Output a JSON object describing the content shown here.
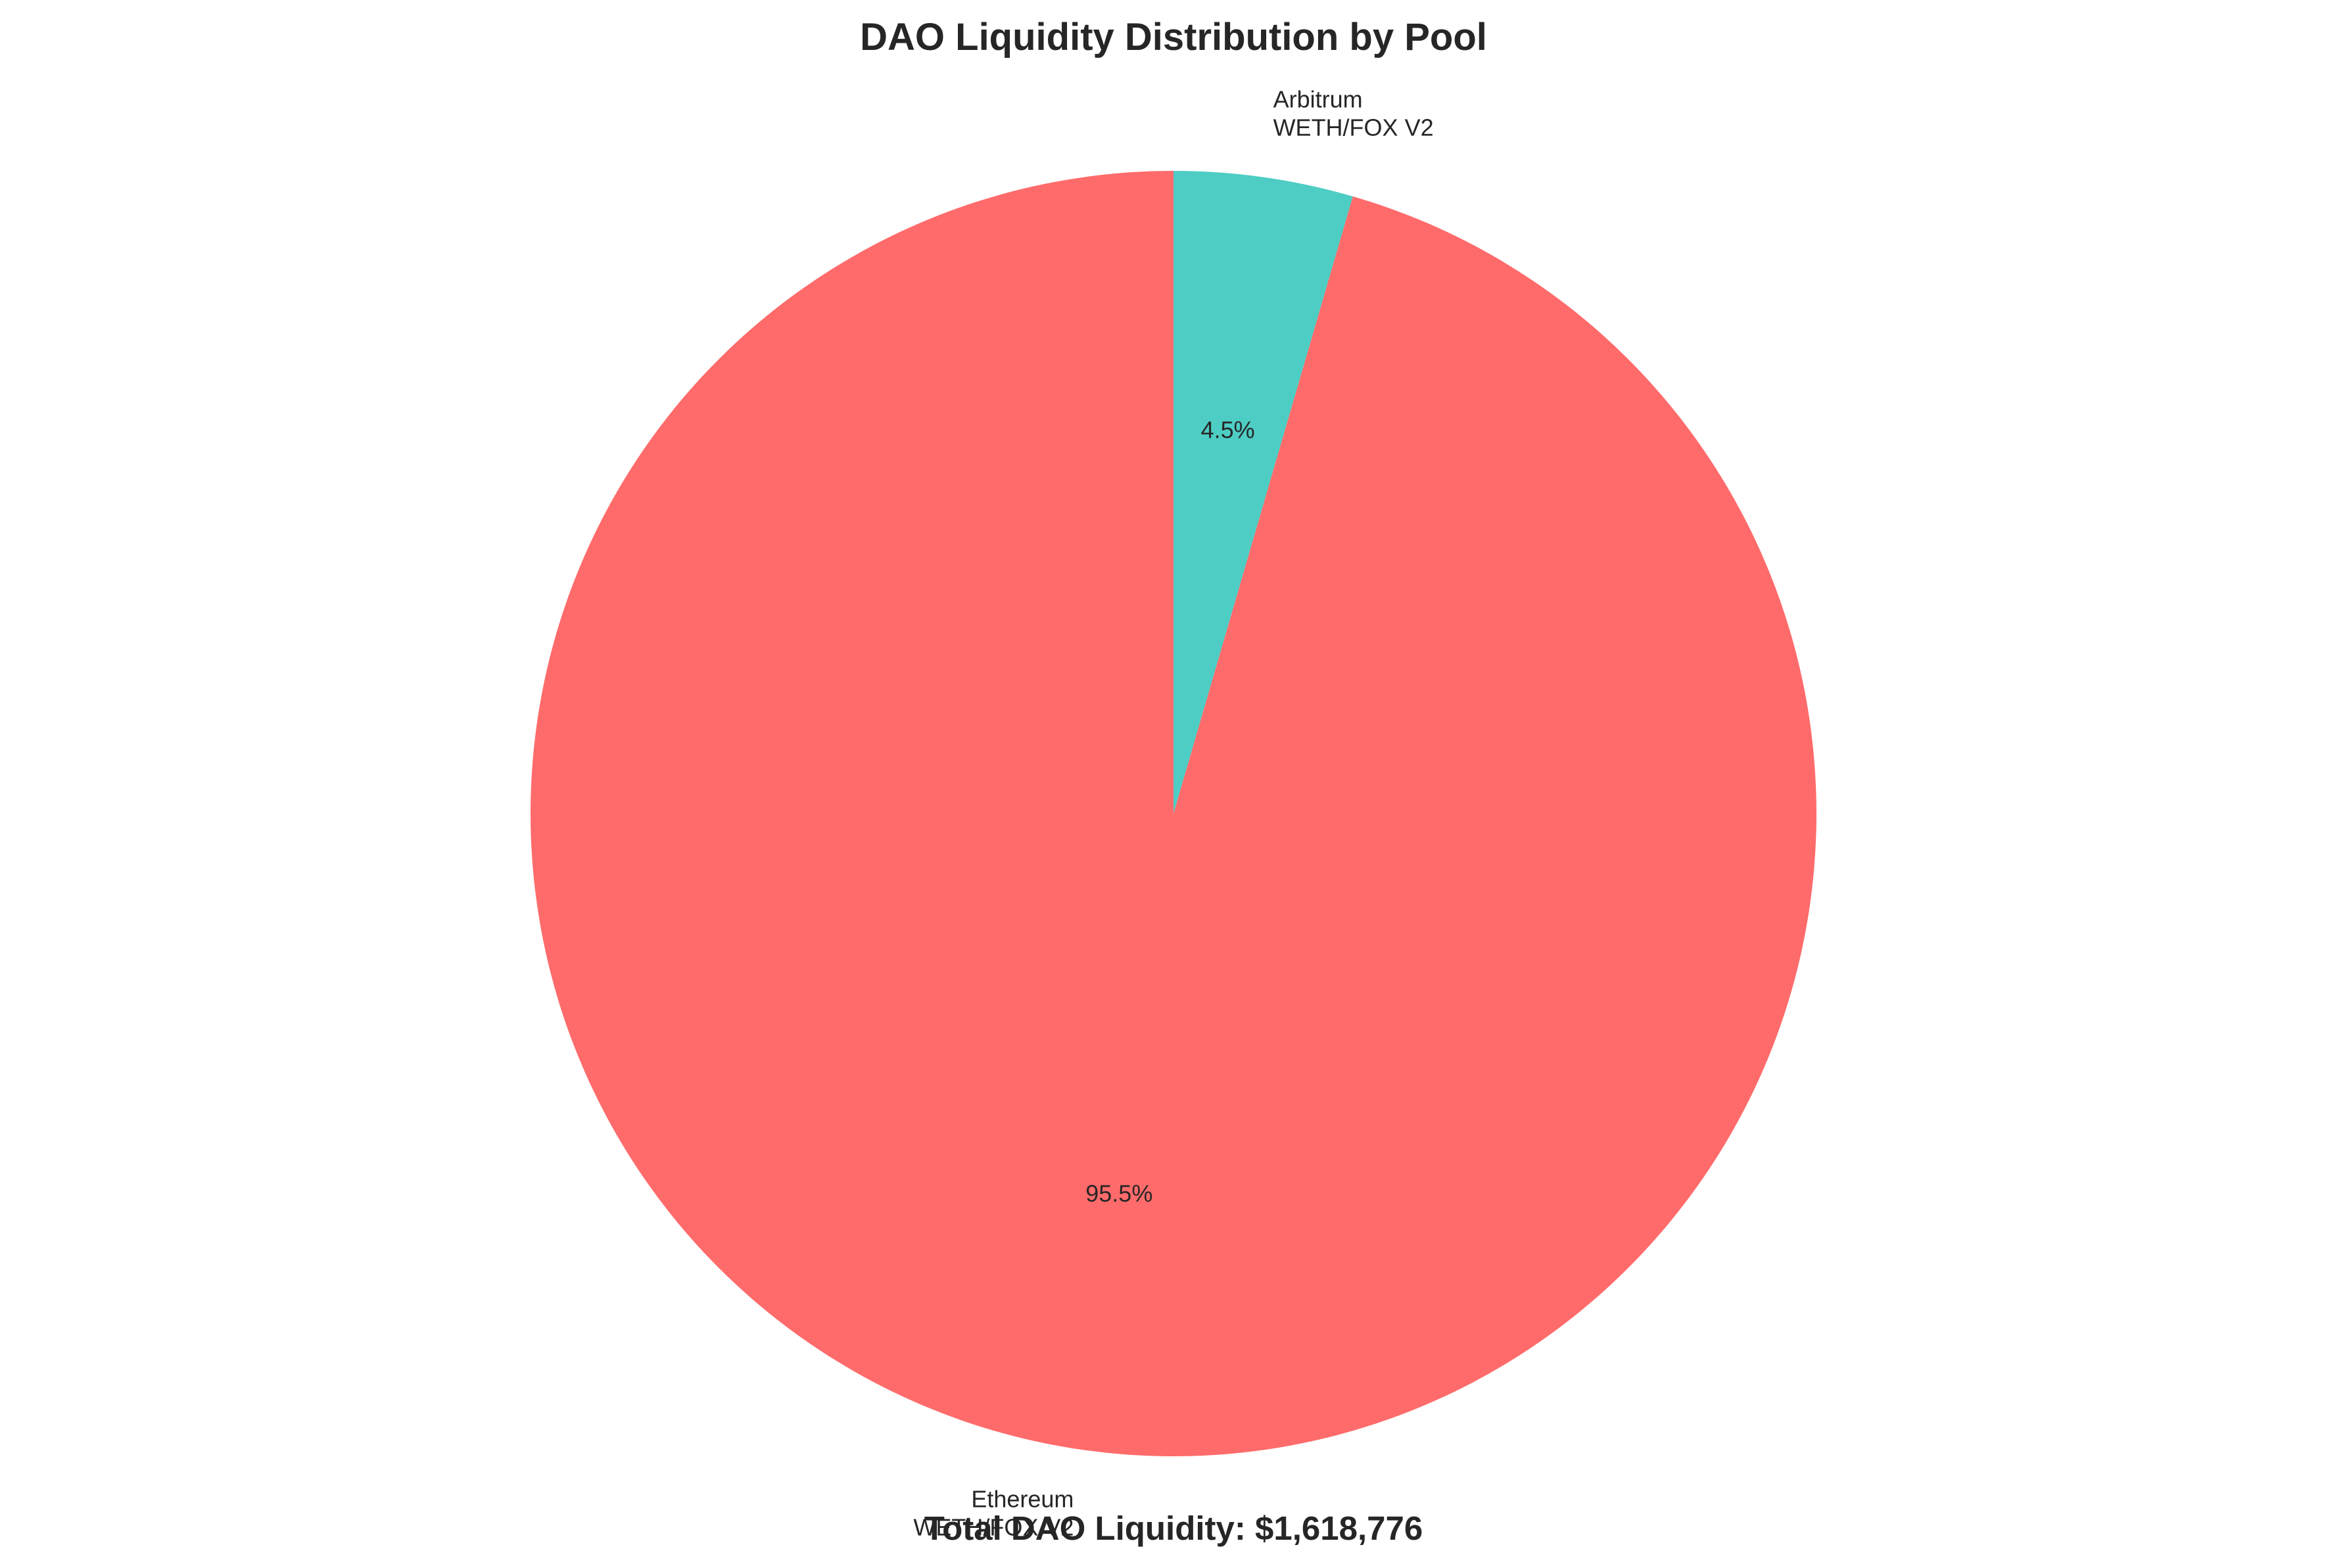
{
  "chart_data": {
    "type": "pie",
    "title": "DAO Liquidity Distribution by Pool",
    "footer": "Total DAO Liquidity: $1,618,776",
    "start_angle": 90,
    "direction": "clockwise",
    "slices": [
      {
        "label_lines": [
          "Arbitrum",
          "WETH/FOX V2"
        ],
        "value": 4.5,
        "pct_label": "4.5%",
        "color": "#4ECDC4"
      },
      {
        "label_lines": [
          "Ethereum",
          "WETH/FOX V2"
        ],
        "value": 95.5,
        "pct_label": "95.5%",
        "color": "#FF6B6B"
      }
    ]
  }
}
